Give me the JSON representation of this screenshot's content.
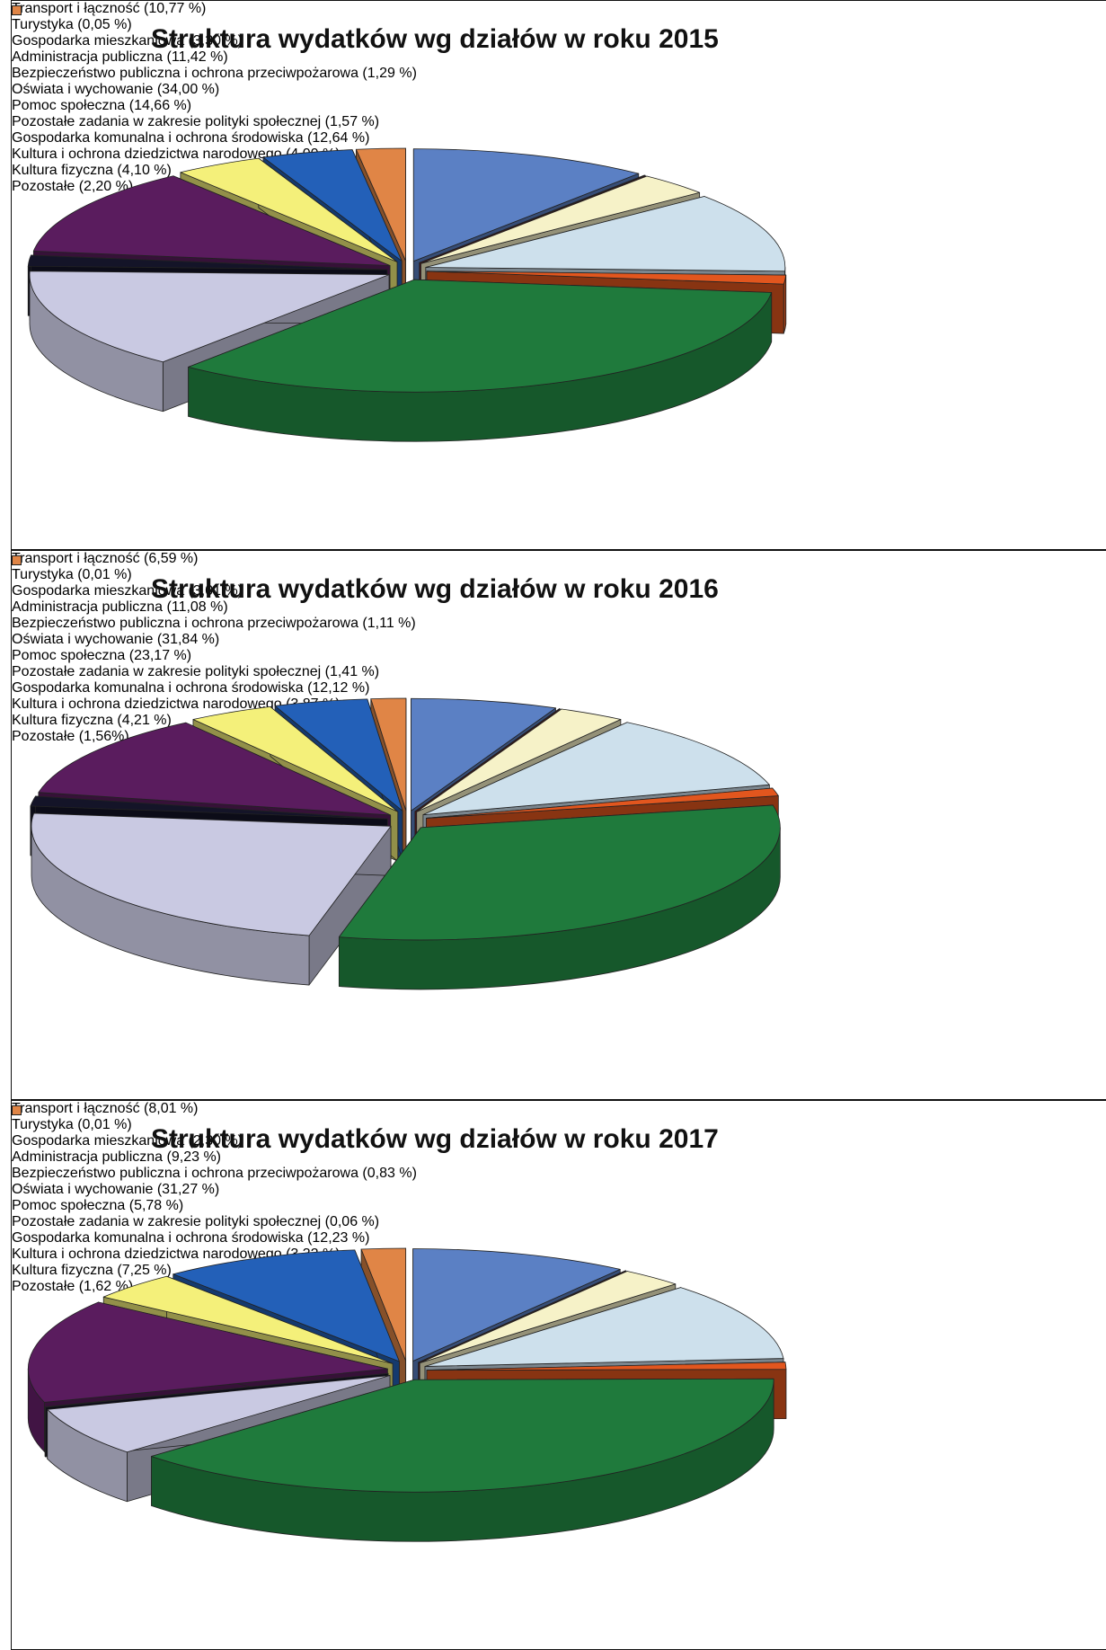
{
  "chart_data": [
    {
      "type": "pie3d",
      "title": "Struktura wydatków wg działów w roku 2015",
      "categories": [
        "Transport i łączność (10,77 %)",
        "Turystyka (0,05 %)",
        "Gospodarka mieszkaniowa (3,30 %)",
        "Administracja publiczna (11,42 %)",
        "Bezpieczeństwo publiczna i ochrona przeciwpożarowa (1,29 %)",
        "Oświata i wychowanie (34,00 %)",
        "Pomoc społeczna (14,66 %)",
        "Pozostałe zadania w zakresie polityki społecznej (1,57 %)",
        "Gospodarka komunalna i ochrona środowiska (12,64 %)",
        "Kultura i ochrona dziedzictwa narodowego (4,00 %)",
        "Kultura fizyczna (4,10 %)",
        "Pozostałe (2,20 %)"
      ],
      "values": [
        10.77,
        0.05,
        3.3,
        11.42,
        1.29,
        34.0,
        14.66,
        1.57,
        12.64,
        4.0,
        4.1,
        2.2
      ],
      "colors": [
        "#5b80c4",
        "#7a1e22",
        "#f6f2c8",
        "#cde0ec",
        "#e2561e",
        "#1f7a3c",
        "#c9c9e2",
        "#141428",
        "#5a1c5e",
        "#f4f07a",
        "#2360b8",
        "#e08546"
      ]
    },
    {
      "type": "pie3d",
      "title": "Struktura wydatków wg działów w roku 2016",
      "categories": [
        "Transport i łączność (6,59 %)",
        "Turystyka (0,01 %)",
        "Gospodarka mieszkaniowa (3,01 %)",
        "Administracja publiczna (11,08 %)",
        "Bezpieczeństwo publiczna i ochrona przeciwpożarowa (1,11 %)",
        "Oświata i wychowanie (31,84 %)",
        "Pomoc społeczna (23,17 %)",
        "Pozostałe zadania w zakresie polityki społecznej (1,41 %)",
        "Gospodarka komunalna i ochrona środowiska (12,12 %)",
        "Kultura i ochrona dziedzictwa narodowego (3,87 %)",
        "Kultura fizyczna (4,21 %)",
        "Pozostałe (1,56%)"
      ],
      "values": [
        6.59,
        0.01,
        3.01,
        11.08,
        1.11,
        31.84,
        23.17,
        1.41,
        12.12,
        3.87,
        4.21,
        1.56
      ],
      "colors": [
        "#5b80c4",
        "#7a1e22",
        "#f6f2c8",
        "#cde0ec",
        "#e2561e",
        "#1f7a3c",
        "#c9c9e2",
        "#141428",
        "#5a1c5e",
        "#f4f07a",
        "#2360b8",
        "#e08546"
      ]
    },
    {
      "type": "pie3d",
      "title": "Struktura wydatków wg działów w roku 2017",
      "categories": [
        "Transport i łączność (8,01 %)",
        "Turystyka (0,01 %)",
        "Gospodarka mieszkaniowa (2,30 %)",
        "Administracja publiczna (9,23 %)",
        "Bezpieczeństwo publiczna i ochrona przeciwpożarowa (0,83 %)",
        "Oświata i wychowanie (31,27 %)",
        "Pomoc społeczna (5,78 %)",
        "Pozostałe zadania w zakresie polityki społecznej (0,06 %)",
        "Gospodarka komunalna i ochrona środowiska (12,23 %)",
        "Kultura i ochrona dziedzictwa narodowego (3,32 %)",
        "Kultura fizyczna (7,25 %)",
        "Pozostałe (1,62 %)"
      ],
      "values": [
        8.01,
        0.01,
        2.3,
        9.23,
        0.83,
        31.27,
        5.78,
        0.06,
        12.23,
        3.32,
        7.25,
        1.62
      ],
      "colors": [
        "#5b80c4",
        "#7a1e22",
        "#f6f2c8",
        "#cde0ec",
        "#e2561e",
        "#1f7a3c",
        "#c9c9e2",
        "#141428",
        "#5a1c5e",
        "#f4f07a",
        "#2360b8",
        "#e08546"
      ]
    }
  ]
}
